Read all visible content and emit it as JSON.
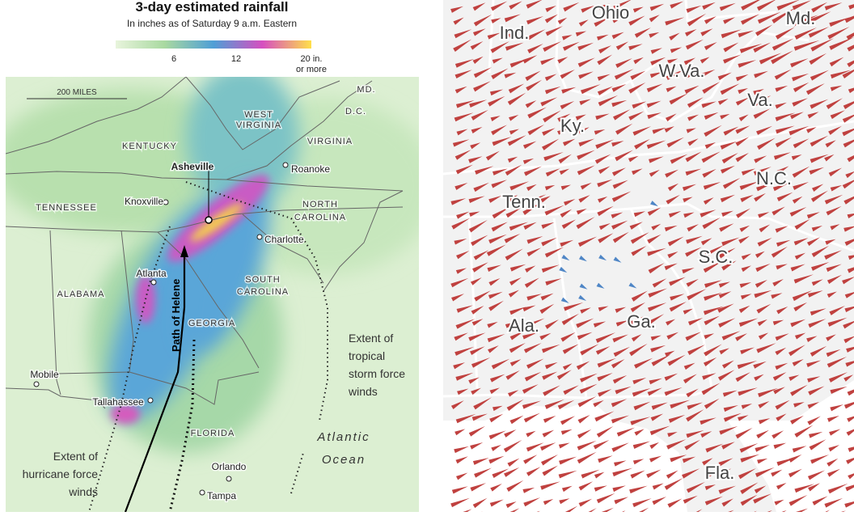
{
  "left_map": {
    "title": "3-day estimated rainfall",
    "subtitle": "In inches as of Saturday 9 a.m. Eastern",
    "legend_labels": [
      "6",
      "12",
      "20 in.",
      "or more"
    ],
    "scale": "200 MILES",
    "states": [
      "MD.",
      "D.C.",
      "WEST",
      "VIRGINIA",
      "KENTUCKY",
      "VIRGINIA",
      "TENNESSEE",
      "NORTH",
      "CAROLINA",
      "SOUTH",
      "CAROLINA",
      "ALABAMA",
      "GEORGIA",
      "FLORIDA"
    ],
    "cities": [
      "Asheville",
      "Roanoke",
      "Knoxville",
      "Charlotte",
      "Atlanta",
      "Mobile",
      "Tallahassee",
      "Orlando",
      "Tampa"
    ],
    "path_label": "Path of Helene",
    "tropical_note": [
      "Extent of",
      "tropical",
      "storm force",
      "winds"
    ],
    "hurricane_note": [
      "Extent of",
      "hurricane force",
      "winds"
    ],
    "ocean": [
      "Atlantic",
      "Ocean"
    ]
  },
  "right_map": {
    "states": [
      "Ohio",
      "Ind.",
      "Md.",
      "W.Va.",
      "Va.",
      "Ky.",
      "N.C.",
      "Tenn.",
      "S.C.",
      "Ala.",
      "Ga.",
      "Fla."
    ]
  }
}
